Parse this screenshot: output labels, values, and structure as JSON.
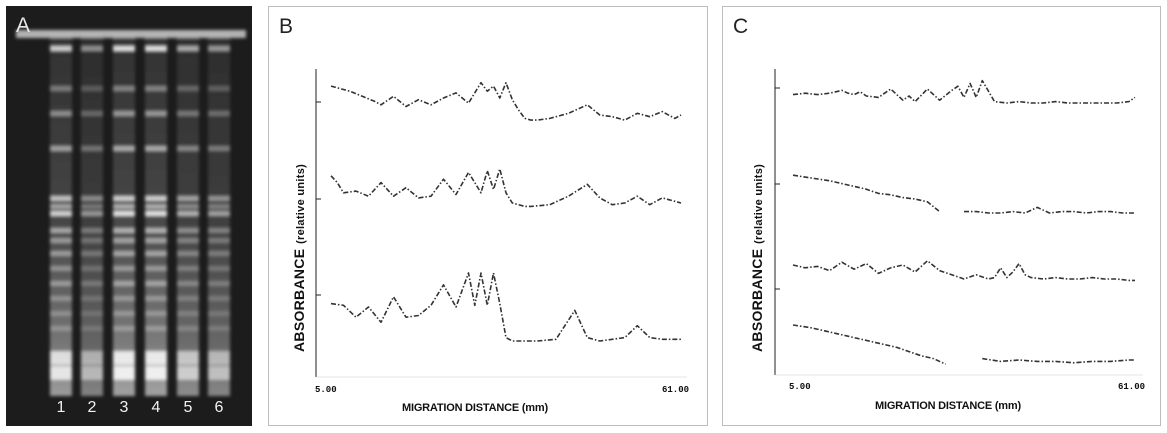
{
  "panels": {
    "a": {
      "label": "A",
      "lanes": [
        "1",
        "2",
        "3",
        "4",
        "5",
        "6"
      ]
    },
    "b": {
      "label": "B",
      "y_axis_main": "ABSORBANCE",
      "y_axis_unit": "(relative units)",
      "x_axis": "MIGRATION DISTANCE (mm)",
      "x_min_label": "5.00",
      "x_max_label": "61.00"
    },
    "c": {
      "label": "C",
      "y_axis_main": "ABSORBANCE",
      "y_axis_unit": "(relative units)",
      "x_axis": "MIGRATION DISTANCE (mm)",
      "x_min_label": "5.00",
      "x_max_label": "61.00"
    }
  },
  "chart_data": [
    {
      "type": "line",
      "panel": "B",
      "xlabel": "MIGRATION DISTANCE (mm)",
      "ylabel": "ABSORBANCE (relative units)",
      "xlim": [
        5,
        61
      ],
      "series": [
        {
          "x": [
            5,
            8,
            10,
            12,
            13,
            15,
            17,
            19,
            21,
            23,
            25,
            27,
            29,
            30,
            31,
            32,
            33,
            34,
            35,
            36,
            37,
            38,
            40,
            43,
            46,
            48,
            50,
            52,
            54,
            56,
            58,
            60,
            61
          ],
          "y": [
            0.85,
            0.7,
            0.55,
            0.4,
            0.3,
            0.55,
            0.25,
            0.45,
            0.3,
            0.5,
            0.65,
            0.35,
            0.95,
            0.7,
            0.85,
            0.5,
            0.95,
            0.45,
            0.15,
            -0.1,
            -0.15,
            -0.15,
            -0.1,
            0.05,
            0.3,
            0.0,
            -0.05,
            -0.15,
            0.05,
            -0.05,
            0.1,
            -0.1,
            0.0
          ]
        },
        {
          "x": [
            5,
            6,
            7,
            9,
            11,
            13,
            15,
            17,
            19,
            21,
            23,
            25,
            27,
            29,
            30,
            31,
            32,
            33,
            34,
            35,
            36,
            37,
            40,
            43,
            46,
            48,
            50,
            52,
            54,
            56,
            58,
            60,
            61
          ],
          "y": [
            0.8,
            0.6,
            0.3,
            0.35,
            0.2,
            0.6,
            0.2,
            0.45,
            0.15,
            0.2,
            0.7,
            0.25,
            0.9,
            0.3,
            0.95,
            0.4,
            1.0,
            0.3,
            0.0,
            -0.05,
            -0.1,
            -0.1,
            -0.05,
            0.2,
            0.55,
            0.15,
            -0.05,
            0.0,
            0.2,
            -0.05,
            0.15,
            0.05,
            0.0
          ]
        },
        {
          "x": [
            5,
            7,
            9,
            11,
            13,
            15,
            17,
            19,
            21,
            23,
            25,
            27,
            28,
            29,
            30,
            31,
            32,
            33,
            34,
            35,
            36,
            38,
            41,
            44,
            46,
            48,
            50,
            52,
            54,
            56,
            58,
            60,
            61
          ],
          "y": [
            0.1,
            0.05,
            -0.3,
            0.0,
            -0.45,
            0.3,
            -0.3,
            -0.25,
            0.05,
            0.65,
            0.0,
            1.0,
            0.05,
            1.0,
            0.05,
            1.0,
            0.1,
            -0.9,
            -1.0,
            -1.0,
            -1.0,
            -1.0,
            -0.95,
            -0.1,
            -0.9,
            -1.0,
            -0.95,
            -0.9,
            -0.55,
            -0.9,
            -0.95,
            -0.95,
            -0.95
          ]
        }
      ]
    },
    {
      "type": "line",
      "panel": "C",
      "xlabel": "MIGRATION DISTANCE (mm)",
      "ylabel": "ABSORBANCE (relative units)",
      "xlim": [
        5,
        61
      ],
      "series": [
        {
          "x": [
            5,
            7,
            9,
            11,
            13,
            14,
            15,
            16,
            17,
            19,
            21,
            23,
            24,
            25,
            27,
            29,
            31,
            32,
            33,
            34,
            35,
            36,
            38,
            40,
            42,
            44,
            46,
            48,
            50,
            52,
            54,
            56,
            58,
            60,
            61
          ],
          "y": [
            0.8,
            0.85,
            0.8,
            0.85,
            0.95,
            0.85,
            0.8,
            0.9,
            0.75,
            0.7,
            1.0,
            0.6,
            0.75,
            0.55,
            1.0,
            0.6,
            0.95,
            1.1,
            0.7,
            1.2,
            0.7,
            1.3,
            0.55,
            0.5,
            0.55,
            0.5,
            0.5,
            0.55,
            0.5,
            0.5,
            0.5,
            0.5,
            0.5,
            0.55,
            0.7
          ]
        },
        {
          "x": [
            5,
            8,
            11,
            14,
            17,
            19,
            21,
            23,
            25,
            27,
            29,
            31,
            33,
            35,
            37,
            39,
            41,
            43,
            45,
            47,
            49,
            51,
            53,
            55,
            57,
            59,
            61
          ],
          "y": [
            0.35,
            0.25,
            0.15,
            0.0,
            -0.15,
            -0.3,
            -0.35,
            -0.45,
            -0.5,
            -0.6,
            -0.95,
            null,
            -0.95,
            -0.95,
            -1.0,
            -1.0,
            -0.95,
            -1.0,
            -0.8,
            -1.0,
            -0.95,
            -0.95,
            -1.0,
            -0.95,
            -0.95,
            -1.0,
            -1.0
          ]
        },
        {
          "x": [
            5,
            7,
            9,
            11,
            13,
            15,
            17,
            19,
            21,
            23,
            25,
            27,
            29,
            31,
            33,
            35,
            37,
            38,
            39,
            40,
            41,
            42,
            43,
            44,
            46,
            48,
            50,
            52,
            54,
            56,
            58,
            60,
            61
          ],
          "y": [
            0.0,
            -0.1,
            -0.05,
            -0.2,
            0.1,
            -0.15,
            0.05,
            -0.3,
            -0.1,
            0.0,
            -0.25,
            0.15,
            -0.2,
            -0.35,
            -0.5,
            -0.35,
            -0.5,
            -0.45,
            -0.1,
            -0.45,
            -0.25,
            0.05,
            -0.35,
            -0.45,
            -0.5,
            -0.45,
            -0.5,
            -0.5,
            -0.45,
            -0.5,
            -0.5,
            -0.55,
            -0.55
          ]
        },
        {
          "x": [
            5,
            8,
            11,
            14,
            17,
            20,
            22,
            24,
            26,
            28,
            30,
            33,
            36,
            39,
            42,
            45,
            48,
            51,
            54,
            57,
            60,
            61
          ],
          "y": [
            0.5,
            0.4,
            0.25,
            0.1,
            -0.05,
            -0.2,
            -0.3,
            -0.45,
            -0.6,
            -0.7,
            -0.9,
            null,
            -0.7,
            -0.8,
            -0.75,
            -0.8,
            -0.8,
            -0.85,
            -0.8,
            -0.8,
            -0.75,
            -0.75
          ]
        }
      ]
    }
  ]
}
